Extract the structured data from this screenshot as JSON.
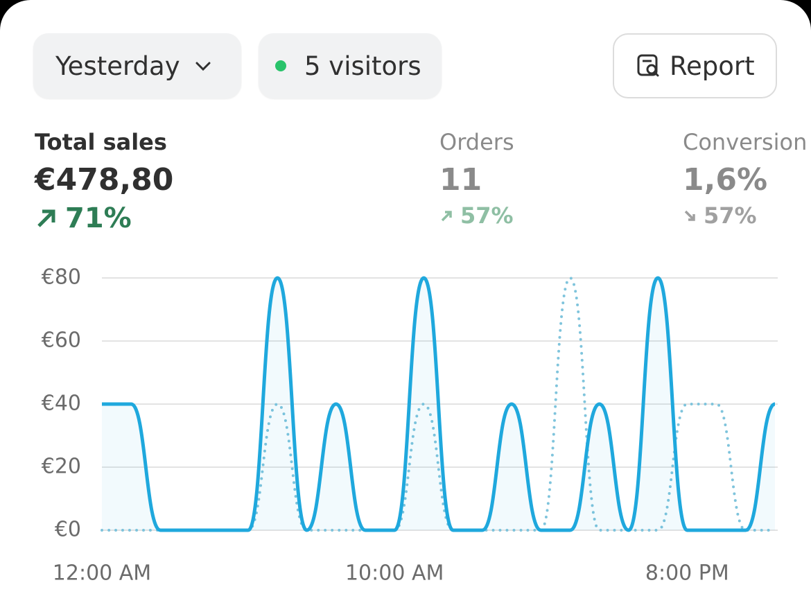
{
  "filters": {
    "period": "Yesterday",
    "visitors": "5 visitors",
    "report": "Report"
  },
  "metrics": [
    {
      "label": "Total sales",
      "value": "€478,80",
      "change": "71%"
    },
    {
      "label": "Orders",
      "value": "11",
      "change": "57%"
    },
    {
      "label": "Conversion",
      "value": "1,6%",
      "change": "57%"
    }
  ],
  "chart_data": {
    "type": "line",
    "categories": [
      "12:00 AM",
      null,
      null,
      null,
      null,
      null,
      null,
      null,
      null,
      null,
      "10:00 AM",
      null,
      null,
      null,
      null,
      null,
      null,
      null,
      null,
      null,
      "8:00 PM",
      null,
      null,
      null
    ],
    "series": [
      {
        "color": "#1fa8dd",
        "style": "solid",
        "values": [
          40,
          40,
          0,
          0,
          0,
          0,
          80,
          0,
          40,
          0,
          0,
          80,
          0,
          0,
          40,
          0,
          0,
          40,
          0,
          80,
          0,
          0,
          0,
          40
        ]
      },
      {
        "color": "#7fc4dc",
        "style": "dotted",
        "values": [
          0,
          0,
          0,
          0,
          0,
          0,
          40,
          0,
          0,
          0,
          0,
          40,
          0,
          0,
          0,
          0,
          80,
          0,
          0,
          0,
          40,
          40,
          0,
          0
        ]
      }
    ],
    "ylim": [
      0,
      80
    ],
    "yticks": [
      {
        "value": 0,
        "label": "€0"
      },
      {
        "value": 20,
        "label": "€20"
      },
      {
        "value": 40,
        "label": "€40"
      },
      {
        "value": 60,
        "label": "€60"
      },
      {
        "value": 80,
        "label": "€80"
      }
    ],
    "grid": true
  }
}
